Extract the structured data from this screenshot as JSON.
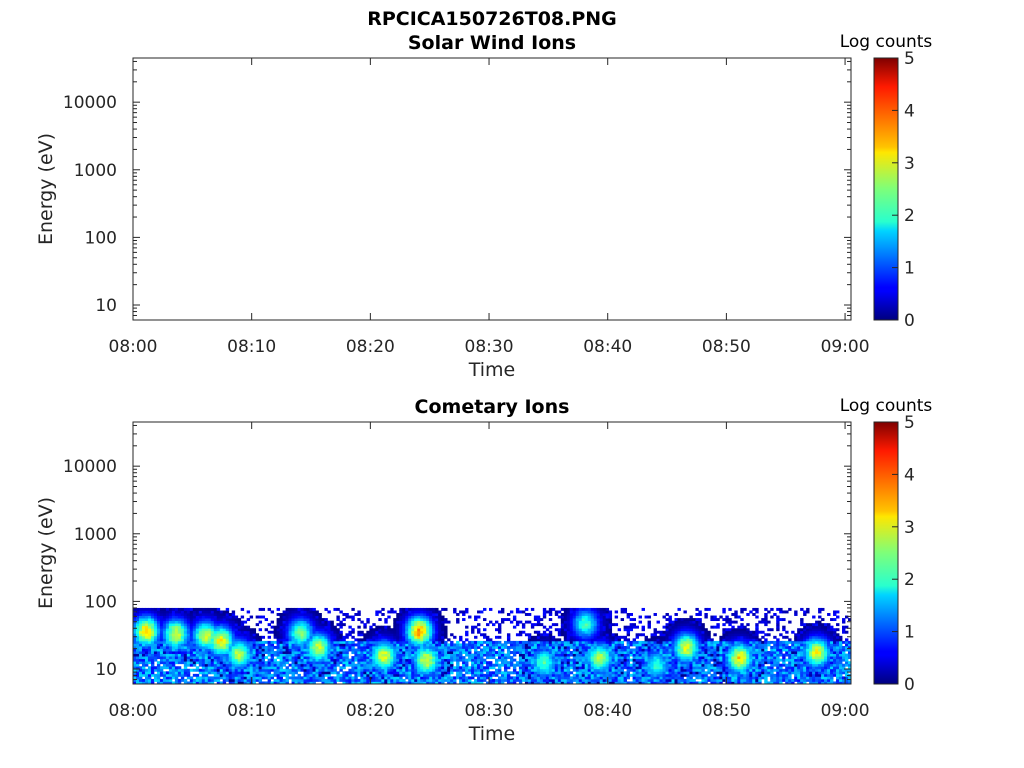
{
  "figure": {
    "filename_title": "RPCICA150726T08.PNG"
  },
  "chart_data": [
    {
      "type": "heatmap",
      "title": "Solar Wind Ions",
      "xlabel": "Time",
      "ylabel": "Energy (eV)",
      "x_ticks": [
        "08:00",
        "08:10",
        "08:20",
        "08:30",
        "08:40",
        "08:50",
        "09:00"
      ],
      "x_range_minutes": [
        0,
        60.5
      ],
      "y_scale": "log",
      "y_ticks": [
        "10",
        "100",
        "1000",
        "10000"
      ],
      "y_range": [
        6,
        45000
      ],
      "colorbar": {
        "label": "Log counts",
        "ticks": [
          "0",
          "1",
          "2",
          "3",
          "4",
          "5"
        ],
        "range": [
          0,
          5
        ],
        "colormap": "jet"
      },
      "features": []
    },
    {
      "type": "heatmap",
      "title": "Cometary Ions",
      "xlabel": "Time",
      "ylabel": "Energy (eV)",
      "x_ticks": [
        "08:00",
        "08:10",
        "08:20",
        "08:30",
        "08:40",
        "08:50",
        "09:00"
      ],
      "x_range_minutes": [
        0,
        60.5
      ],
      "y_scale": "log",
      "y_ticks": [
        "10",
        "100",
        "1000",
        "10000"
      ],
      "y_range": [
        6,
        45000
      ],
      "colorbar": {
        "label": "Log counts",
        "ticks": [
          "0",
          "1",
          "2",
          "3",
          "4",
          "5"
        ],
        "range": [
          0,
          5
        ],
        "colormap": "jet"
      },
      "background_band": {
        "e_min": 6,
        "e_max": 25,
        "level": 1.5
      },
      "noise_band": {
        "e_min": 25,
        "e_max": 80,
        "level": 0.2
      },
      "features": [
        {
          "t": 1.0,
          "e": 35,
          "level": 3.5
        },
        {
          "t": 3.5,
          "e": 32,
          "level": 3.1
        },
        {
          "t": 6.0,
          "e": 30,
          "level": 3.0
        },
        {
          "t": 7.3,
          "e": 25,
          "level": 3.3
        },
        {
          "t": 8.8,
          "e": 16,
          "level": 2.9
        },
        {
          "t": 14.0,
          "e": 33,
          "level": 2.6
        },
        {
          "t": 15.5,
          "e": 20,
          "level": 3.0
        },
        {
          "t": 21.0,
          "e": 15,
          "level": 3.2
        },
        {
          "t": 24.0,
          "e": 35,
          "level": 3.8
        },
        {
          "t": 24.6,
          "e": 13,
          "level": 3.1
        },
        {
          "t": 34.5,
          "e": 12,
          "level": 2.4
        },
        {
          "t": 38.0,
          "e": 45,
          "level": 2.3
        },
        {
          "t": 39.2,
          "e": 14,
          "level": 2.9
        },
        {
          "t": 44.0,
          "e": 11,
          "level": 2.2
        },
        {
          "t": 46.5,
          "e": 20,
          "level": 3.1
        },
        {
          "t": 51.0,
          "e": 14,
          "level": 3.4
        },
        {
          "t": 57.5,
          "e": 17,
          "level": 3.2
        }
      ]
    }
  ]
}
